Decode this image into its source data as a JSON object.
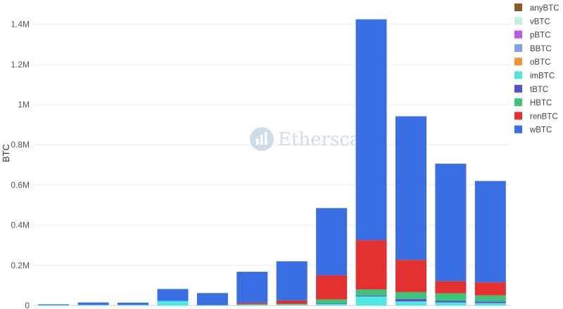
{
  "chart_data": {
    "type": "bar",
    "stacked": true,
    "ylabel": "BTC",
    "xlabel": "",
    "title": "",
    "ylim": [
      0,
      1500000
    ],
    "yticks": [
      {
        "value": 0,
        "label": "0"
      },
      {
        "value": 200000,
        "label": "0.2M"
      },
      {
        "value": 400000,
        "label": "0.4M"
      },
      {
        "value": 600000,
        "label": "0.6M"
      },
      {
        "value": 800000,
        "label": "0.8M"
      },
      {
        "value": 1000000,
        "label": "1M"
      },
      {
        "value": 1200000,
        "label": "1.2M"
      },
      {
        "value": 1400000,
        "label": "1.4M"
      }
    ],
    "grid": true,
    "legend_position": "right",
    "category_count": 12,
    "series": [
      {
        "name": "wBTC",
        "color": "#3a6fe3",
        "values": [
          4000,
          12000,
          11000,
          60000,
          60000,
          155000,
          195000,
          335000,
          1100000,
          715000,
          585000,
          505000
        ]
      },
      {
        "name": "renBTC",
        "color": "#e53030",
        "values": [
          0,
          0,
          0,
          0,
          0,
          7000,
          17000,
          120000,
          245000,
          160000,
          60000,
          65000
        ]
      },
      {
        "name": "HBTC",
        "color": "#3ec47a",
        "values": [
          0,
          0,
          0,
          0,
          0,
          2000,
          4000,
          20000,
          30000,
          35000,
          38000,
          30000
        ]
      },
      {
        "name": "tBTC",
        "color": "#5a4fd0",
        "values": [
          0,
          0,
          0,
          0,
          0,
          0,
          0,
          2000,
          5000,
          12000,
          8000,
          8000
        ]
      },
      {
        "name": "imBTC",
        "color": "#4de8e0",
        "values": [
          2000,
          3000,
          3000,
          22000,
          2000,
          4000,
          4000,
          8000,
          45000,
          20000,
          15000,
          12000
        ]
      },
      {
        "name": "oBTC",
        "color": "#f0963a",
        "values": [
          0,
          0,
          0,
          0,
          0,
          0,
          0,
          0,
          0,
          0,
          0,
          0
        ]
      },
      {
        "name": "BBTC",
        "color": "#7aa4e8",
        "values": [
          0,
          0,
          0,
          0,
          0,
          0,
          0,
          0,
          0,
          0,
          0,
          0
        ]
      },
      {
        "name": "pBTC",
        "color": "#b65ae6",
        "values": [
          0,
          0,
          0,
          0,
          0,
          0,
          0,
          0,
          0,
          0,
          0,
          0
        ]
      },
      {
        "name": "vBTC",
        "color": "#bff2dc",
        "values": [
          0,
          0,
          0,
          0,
          0,
          0,
          0,
          0,
          0,
          0,
          0,
          0
        ]
      },
      {
        "name": "anyBTC",
        "color": "#8b5a2b",
        "values": [
          0,
          0,
          0,
          0,
          0,
          0,
          0,
          0,
          0,
          0,
          0,
          0
        ]
      }
    ],
    "stack_order": [
      "imBTC",
      "tBTC",
      "HBTC",
      "renBTC",
      "wBTC",
      "oBTC",
      "BBTC",
      "pBTC",
      "vBTC",
      "anyBTC"
    ],
    "legend_order": [
      "anyBTC",
      "vBTC",
      "pBTC",
      "BBTC",
      "oBTC",
      "imBTC",
      "tBTC",
      "HBTC",
      "renBTC",
      "wBTC"
    ]
  },
  "watermark": {
    "text": "Etherscan",
    "icon": "etherscan-logo-icon"
  }
}
